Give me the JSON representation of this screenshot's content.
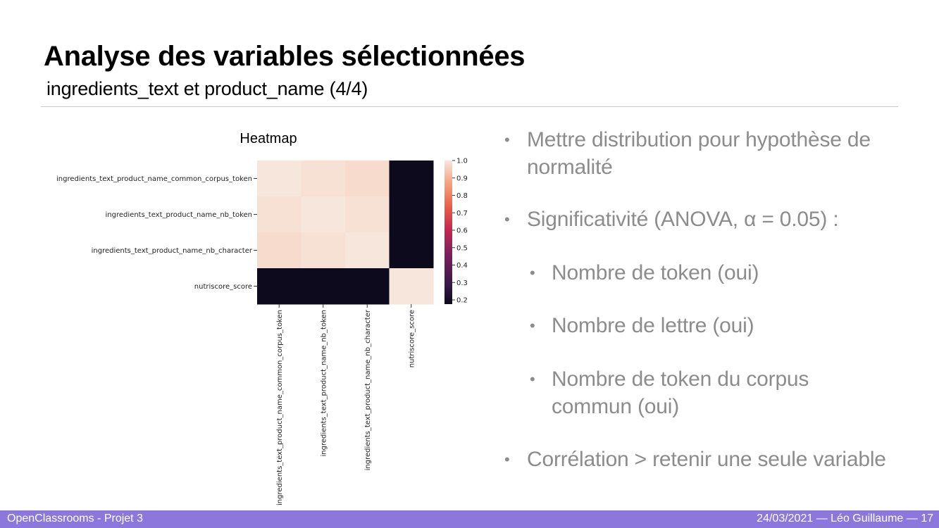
{
  "slide": {
    "title": "Analyse des variables sélectionnées",
    "subtitle": "ingredients_text et product_name (4/4)"
  },
  "bullets": [
    {
      "level": 1,
      "lines": [
        "Mettre distribution pour hypothèse de",
        "normalité"
      ]
    },
    {
      "level": 1,
      "lines": [
        "Significativité (ANOVA, α = 0.05) :"
      ]
    },
    {
      "level": 2,
      "lines": [
        "Nombre de token (oui)"
      ]
    },
    {
      "level": 2,
      "lines": [
        "Nombre de lettre (oui)"
      ]
    },
    {
      "level": 2,
      "lines": [
        "Nombre de token du corpus",
        "commun (oui)"
      ]
    },
    {
      "level": 1,
      "lines": [
        "Corrélation > retenir une seule variable"
      ]
    }
  ],
  "footer": {
    "left": "OpenClassrooms - Projet 3",
    "right": "24/03/2021  — Léo Guillaume —  17"
  },
  "colors": {
    "footer_bg": "#8c78dc",
    "bullet_text": "#8c8c8c",
    "heatmap_high": "#f5e5dc",
    "heatmap_low": "#0d0a1e"
  },
  "chart_data": {
    "type": "heatmap",
    "title": "Heatmap",
    "rows": [
      "ingredients_text_product_name_common_corpus_token",
      "ingredients_text_product_name_nb_token",
      "ingredients_text_product_name_nb_character",
      "nutriscore_score"
    ],
    "columns": [
      "ingredients_text_product_name_common_corpus_token",
      "ingredients_text_product_name_nb_token",
      "ingredients_text_product_name_nb_character",
      "nutriscore_score"
    ],
    "values": [
      [
        1.0,
        0.99,
        0.98,
        0.18
      ],
      [
        0.99,
        1.0,
        0.99,
        0.18
      ],
      [
        0.98,
        0.99,
        1.0,
        0.18
      ],
      [
        0.18,
        0.18,
        0.18,
        1.0
      ]
    ],
    "colorbar": {
      "range": [
        0.18,
        1.0
      ],
      "ticks": [
        "1.0",
        "0.9",
        "0.8",
        "0.7",
        "0.6",
        "0.5",
        "0.4",
        "0.3",
        "0.2"
      ],
      "colormap": "rocket"
    }
  }
}
